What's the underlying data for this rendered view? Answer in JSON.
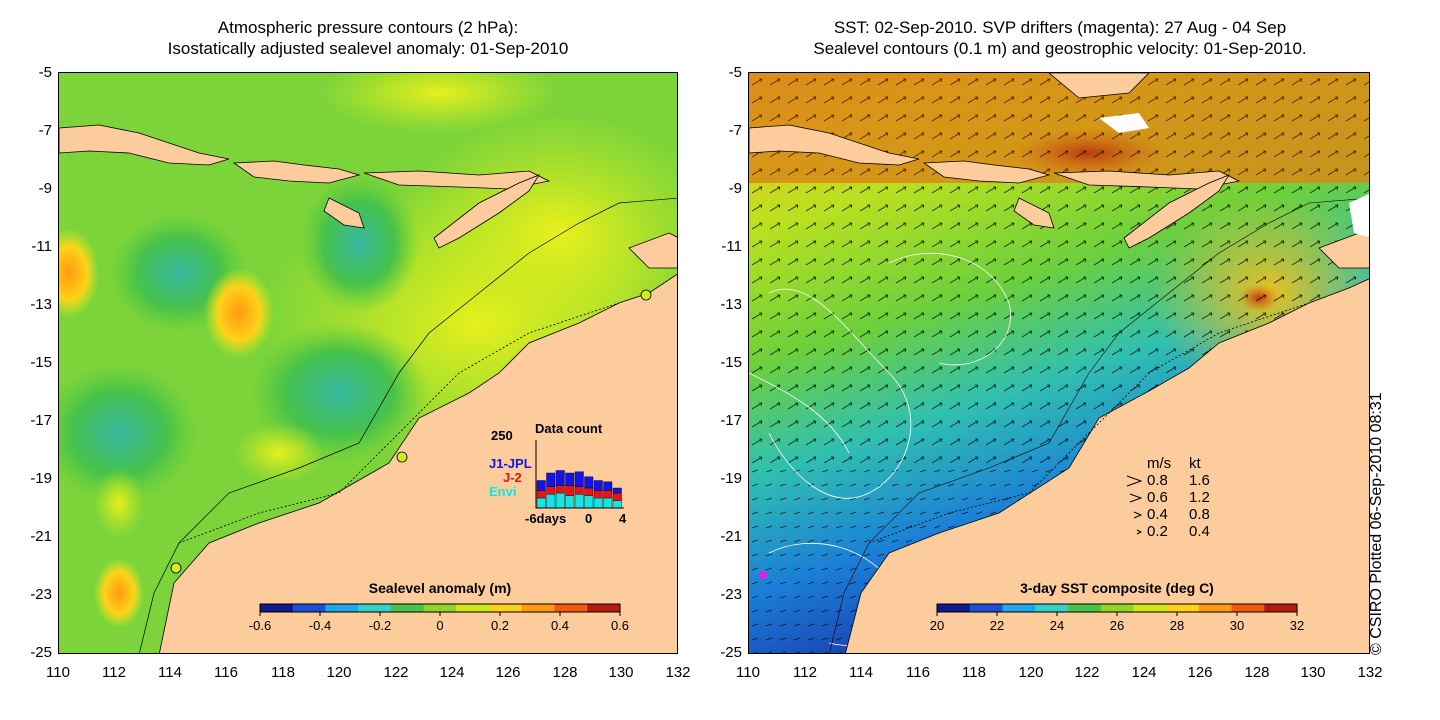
{
  "left_panel": {
    "title_line1": "Atmospheric pressure contours (2 hPa):",
    "title_line2": "Isostatically adjusted sealevel anomaly: 01-Sep-2010",
    "colorbar": {
      "label": "Sealevel anomaly (m)",
      "ticks": [
        "-0.6",
        "-0.4",
        "-0.2",
        "0",
        "0.2",
        "0.4",
        "0.6"
      ],
      "colors": [
        "#0b1a8c",
        "#1f4fd6",
        "#1fa6ea",
        "#35d0c8",
        "#47c24a",
        "#8fd82a",
        "#cfe81c",
        "#ffd21a",
        "#ff9a10",
        "#f25a10",
        "#b31b0b"
      ]
    },
    "data_count": {
      "title": "Data count",
      "ymax_label": "250",
      "x_labels": [
        "-6days",
        "0",
        "4"
      ],
      "legend": [
        {
          "name": "J1-JPL",
          "color": "#1414e6"
        },
        {
          "name": "J-2",
          "color": "#e61414"
        },
        {
          "name": "Envi",
          "color": "#14e6e6"
        }
      ],
      "bars": [
        {
          "j1": 40,
          "j2": 30,
          "envi": 40
        },
        {
          "j1": 55,
          "j2": 30,
          "envi": 55
        },
        {
          "j1": 60,
          "j2": 30,
          "envi": 60
        },
        {
          "j1": 50,
          "j2": 40,
          "envi": 50
        },
        {
          "j1": 60,
          "j2": 30,
          "envi": 55
        },
        {
          "j1": 45,
          "j2": 30,
          "envi": 50
        },
        {
          "j1": 40,
          "j2": 30,
          "envi": 40
        },
        {
          "j1": 35,
          "j2": 30,
          "envi": 40
        },
        {
          "j1": 20,
          "j2": 30,
          "envi": 30
        }
      ]
    }
  },
  "right_panel": {
    "title_line1": "SST: 02-Sep-2010. SVP drifters (magenta): 27 Aug - 04 Sep",
    "title_line2": "Sealevel contours (0.1 m) and geostrophic velocity: 01-Sep-2010.",
    "colorbar": {
      "label": "3-day SST composite (deg C)",
      "ticks": [
        "20",
        "22",
        "24",
        "26",
        "28",
        "30",
        "32"
      ],
      "colors": [
        "#0b1a8c",
        "#1f4fd6",
        "#1fa6ea",
        "#35d0c8",
        "#47c24a",
        "#8fd82a",
        "#cfe81c",
        "#ffd21a",
        "#ff9a10",
        "#f25a10",
        "#b31b0b"
      ]
    },
    "velocity_legend": {
      "header_ms": "m/s",
      "header_kt": "kt",
      "rows": [
        {
          "ms": "0.8",
          "kt": "1.6"
        },
        {
          "ms": "0.6",
          "kt": "1.2"
        },
        {
          "ms": "0.4",
          "kt": "0.8"
        },
        {
          "ms": "0.2",
          "kt": "0.4"
        }
      ]
    }
  },
  "axes": {
    "y_ticks": [
      "-5",
      "-7",
      "-9",
      "-11",
      "-13",
      "-15",
      "-17",
      "-19",
      "-21",
      "-23",
      "-25"
    ],
    "x_ticks": [
      "110",
      "112",
      "114",
      "116",
      "118",
      "120",
      "122",
      "124",
      "126",
      "128",
      "130",
      "132"
    ]
  },
  "colors": {
    "land": "#fccc9c",
    "sea_green": "#5ccc3c",
    "sea_yellow": "#d4ec1c"
  },
  "credit": "© CSIRO Plotted 06-Sep-2010 08:31"
}
